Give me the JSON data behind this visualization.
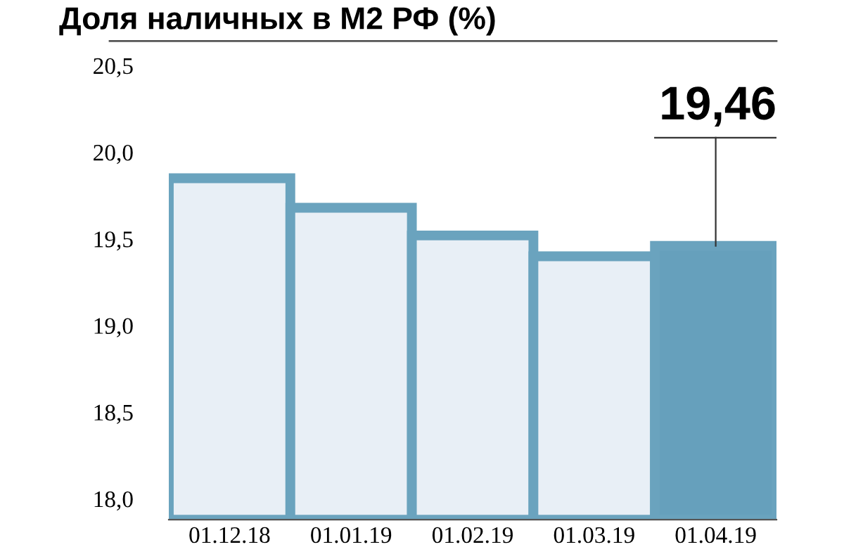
{
  "chart_data": {
    "type": "bar",
    "title": "Доля наличных в М2 РФ (%)",
    "categories": [
      "01.12.18",
      "01.01.19",
      "01.02.19",
      "01.03.19",
      "01.04.19"
    ],
    "series": [
      {
        "color": "#6aa3be",
        "colors": [
          "#e8eff6",
          "#e8eff6",
          "#e8eff6",
          "#e8eff6",
          "#66a0bc"
        ],
        "values": [
          19.85,
          19.68,
          19.52,
          19.4,
          19.46
        ],
        "value_labels": [
          null,
          null,
          null,
          null,
          "19,46"
        ]
      }
    ],
    "ylim": [
      17.88,
      20.5
    ],
    "yticks": [
      {
        "value": 18.0,
        "label": "18,0"
      },
      {
        "value": 18.5,
        "label": "18,5"
      },
      {
        "value": 19.0,
        "label": "19,0"
      },
      {
        "value": 19.5,
        "label": "19,5"
      },
      {
        "value": 20.0,
        "label": "20,0"
      },
      {
        "value": 20.5,
        "label": "20,5"
      }
    ],
    "grid": false
  }
}
